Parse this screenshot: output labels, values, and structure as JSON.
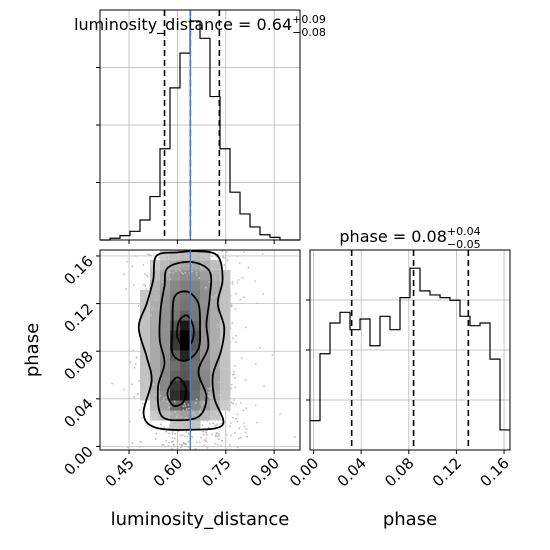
{
  "chart_data": {
    "type": "corner",
    "parameters": [
      "luminosity_distance",
      "phase"
    ],
    "axis_labels": {
      "x_bottom_left": "luminosity_distance",
      "x_bottom_right": "phase",
      "y_left": "phase"
    },
    "ranges": {
      "luminosity_distance": [
        0.36,
        0.98
      ],
      "phase": [
        -0.003,
        0.165
      ]
    },
    "ticks": {
      "luminosity_distance": {
        "values": [
          0.45,
          0.6,
          0.75,
          0.9
        ],
        "labels": [
          "0.45",
          "0.60",
          "0.75",
          "0.90"
        ]
      },
      "phase": {
        "values": [
          0.0,
          0.04,
          0.08,
          0.12,
          0.16
        ],
        "labels": [
          "0.00",
          "0.04",
          "0.08",
          "0.12",
          "0.16"
        ]
      }
    },
    "titles": {
      "luminosity_distance": {
        "text": "luminosity_distance = 0.64",
        "plus": "+0.09",
        "minus": "−0.08"
      },
      "phase": {
        "text": "phase = 0.08",
        "plus": "+0.04",
        "minus": "−0.05"
      }
    },
    "quantiles": {
      "luminosity_distance": [
        0.56,
        0.64,
        0.73
      ],
      "phase": [
        0.032,
        0.084,
        0.13
      ]
    },
    "truth": {
      "luminosity_distance": 0.64,
      "color": "#4c7fb8"
    },
    "hist_luminosity_distance": {
      "edges": [
        0.36,
        0.391,
        0.422,
        0.453,
        0.484,
        0.515,
        0.546,
        0.577,
        0.608,
        0.639,
        0.67,
        0.701,
        0.732,
        0.763,
        0.794,
        0.825,
        0.856,
        0.887,
        0.918,
        0.949,
        0.98
      ],
      "counts": [
        0,
        2,
        5,
        10,
        23,
        50,
        105,
        175,
        215,
        252,
        232,
        165,
        105,
        55,
        30,
        15,
        6,
        3,
        0,
        0
      ]
    },
    "hist_phase": {
      "edges": [
        -0.003,
        0.0054,
        0.0138,
        0.0222,
        0.0306,
        0.039,
        0.0474,
        0.0558,
        0.0642,
        0.0726,
        0.081,
        0.0894,
        0.0978,
        0.1062,
        0.1146,
        0.123,
        0.1314,
        0.1398,
        0.1482,
        0.1566,
        0.165
      ],
      "counts": [
        22,
        72,
        95,
        103,
        90,
        98,
        78,
        100,
        90,
        114,
        136,
        119,
        116,
        114,
        112,
        100,
        93,
        95,
        68,
        15
      ]
    },
    "contours_2d": [
      [
        [
          0.535,
          0.16
        ],
        [
          0.6,
          0.163
        ],
        [
          0.665,
          0.164
        ],
        [
          0.725,
          0.16
        ],
        [
          0.74,
          0.14
        ],
        [
          0.725,
          0.12
        ],
        [
          0.745,
          0.1
        ],
        [
          0.735,
          0.08
        ],
        [
          0.71,
          0.06
        ],
        [
          0.715,
          0.04
        ],
        [
          0.74,
          0.018
        ],
        [
          0.64,
          0.014
        ],
        [
          0.53,
          0.016
        ],
        [
          0.495,
          0.028
        ],
        [
          0.52,
          0.055
        ],
        [
          0.505,
          0.075
        ],
        [
          0.48,
          0.1
        ],
        [
          0.505,
          0.12
        ],
        [
          0.525,
          0.14
        ]
      ],
      [
        [
          0.57,
          0.15
        ],
        [
          0.64,
          0.155
        ],
        [
          0.7,
          0.147
        ],
        [
          0.7,
          0.125
        ],
        [
          0.69,
          0.103
        ],
        [
          0.695,
          0.083
        ],
        [
          0.665,
          0.063
        ],
        [
          0.69,
          0.042
        ],
        [
          0.67,
          0.026
        ],
        [
          0.61,
          0.022
        ],
        [
          0.55,
          0.026
        ],
        [
          0.54,
          0.05
        ],
        [
          0.56,
          0.07
        ],
        [
          0.545,
          0.09
        ],
        [
          0.548,
          0.115
        ],
        [
          0.56,
          0.135
        ]
      ],
      [
        [
          0.59,
          0.125
        ],
        [
          0.63,
          0.13
        ],
        [
          0.665,
          0.12
        ],
        [
          0.67,
          0.1
        ],
        [
          0.665,
          0.082
        ],
        [
          0.625,
          0.072
        ],
        [
          0.585,
          0.078
        ],
        [
          0.585,
          0.1
        ]
      ],
      [
        [
          0.605,
          0.105
        ],
        [
          0.63,
          0.11
        ],
        [
          0.65,
          0.1
        ],
        [
          0.645,
          0.088
        ],
        [
          0.62,
          0.084
        ],
        [
          0.6,
          0.092
        ]
      ],
      [
        [
          0.575,
          0.05
        ],
        [
          0.6,
          0.058
        ],
        [
          0.625,
          0.05
        ],
        [
          0.62,
          0.038
        ],
        [
          0.59,
          0.034
        ],
        [
          0.57,
          0.042
        ]
      ]
    ],
    "density_blobs": [
      [
        0.62,
        0.095,
        0.09,
        0.035,
        0.55
      ],
      [
        0.63,
        0.045,
        0.08,
        0.02,
        0.45
      ],
      [
        0.64,
        0.14,
        0.08,
        0.02,
        0.3
      ],
      [
        0.62,
        0.09,
        0.02,
        0.01,
        1.0
      ],
      [
        0.61,
        0.045,
        0.02,
        0.008,
        0.6
      ]
    ],
    "colors": {
      "hist": "#000000",
      "points": "#bfbfbf",
      "grid": "#b0b0b0",
      "contour": "#000000"
    },
    "grid": true
  }
}
